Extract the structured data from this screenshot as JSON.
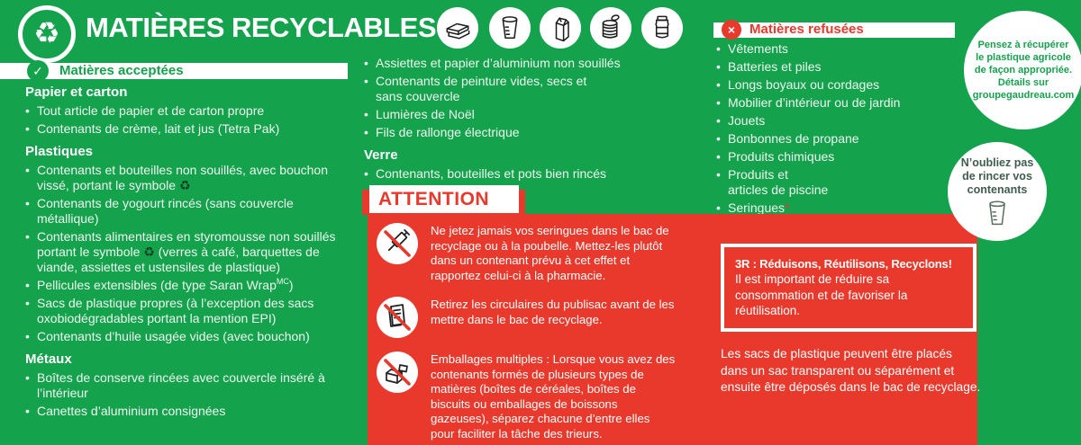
{
  "title": "MATIÈRES RECYCLABLES",
  "colors": {
    "green": "#14A24D",
    "red": "#E8392C",
    "rinse_text": "#3F5D4E"
  },
  "header_icons": [
    "paper-stack-icon",
    "plastic-cup-icon",
    "milk-carton-icon",
    "tin-can-icon",
    "glass-jar-icon"
  ],
  "accepted": {
    "header": "Matières acceptées",
    "sections": [
      {
        "heading": "Papier et carton",
        "items": [
          "Tout article de papier et de carton propre",
          "Contenants de crème, lait et jus (Tetra Pak)"
        ]
      },
      {
        "heading": "Plastiques",
        "items": [
          [
            {
              "text": "Contenants et bouteilles non souillés, avec bouchon vissé, portant le symbole "
            },
            {
              "text": "♻",
              "cls": "sym"
            }
          ],
          "Contenants de yogourt rincés (sans couvercle métallique)",
          [
            {
              "text": "Contenants alimentaires en styromousse non souillés portant le symbole "
            },
            {
              "text": "♻",
              "cls": "sym"
            },
            {
              "text": " (verres à café, barquettes de viande, assiettes et ustensiles de plastique)"
            }
          ],
          [
            {
              "text": "Pellicules extensibles (de type Saran Wrap"
            },
            {
              "text": "MC",
              "cls": "sup"
            },
            {
              "text": ")"
            }
          ],
          "Sacs de plastique propres (à l’exception des sacs oxobiodégradables portant la mention EPI)",
          "Contenants d’huile usagée vides (avec bouchon)"
        ]
      },
      {
        "heading": "Métaux",
        "items": [
          "Boîtes de conserve rincées avec couvercle inséré à l’intérieur",
          "Canettes d’aluminium consignées"
        ]
      }
    ]
  },
  "col2": {
    "items": [
      "Assiettes et papier d’aluminium non souillés",
      "Contenants de peinture vides, secs et\nsans couvercle",
      "Lumières de Noël",
      "Fils de rallonge électrique"
    ],
    "sections": [
      {
        "heading": "Verre",
        "items": [
          "Contenants, bouteilles et pots bien rincés"
        ]
      }
    ]
  },
  "attention": {
    "label": "ATTENTION",
    "warnings": [
      {
        "icon": "no-syringe-icon",
        "text": "Ne jetez jamais vos seringues dans le bac de recyclage ou à la poubelle. Mettez-les plutôt dans un contenant prévu à cet effet et rapportez celui-ci à la pharmacie."
      },
      {
        "icon": "no-flyers-icon",
        "text": "Retirez les circulaires du publisac avant de les mettre dans le bac de recyclage."
      },
      {
        "icon": "no-multipack-icon",
        "text": "Emballages multiples : Lorsque vous avez des contenants formés de plusieurs types de matières (boîtes de céréales, boîtes de biscuits ou emballages de boissons gazeuses), séparez chacune d’entre elles pour faciliter la tâche des trieurs."
      }
    ]
  },
  "refused": {
    "header": "Matières refusées",
    "items": [
      "Vêtements",
      "Batteries et piles",
      "Longs boyaux ou cordages",
      "Mobilier d’intérieur ou de jardin",
      "Jouets",
      "Bonbonnes de propane",
      "Produits chimiques",
      "Produits et\narticles de piscine",
      [
        {
          "text": "Seringues"
        },
        {
          "text": "*",
          "cls": "red-star"
        }
      ]
    ]
  },
  "three_r": {
    "title": "3R : Réduisons, Réutilisons, Recyclons!",
    "body": "Il est important de réduire sa consommation et de favoriser la réutilisation."
  },
  "plastic_bags_note": "Les sacs de plastique peuvent être placés dans un sac transparent ou séparément et ensuite être déposés dans le bac de recyclage.",
  "bubbles": {
    "agricultural": "Pensez à récupérer le plastique agricole de façon appropriée. Détails sur groupegaudreau.com",
    "rinse": "N’oubliez pas de rincer vos contenants"
  }
}
